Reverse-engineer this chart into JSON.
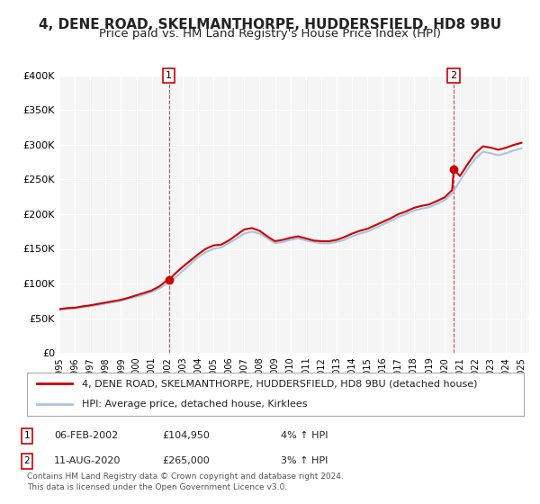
{
  "title": "4, DENE ROAD, SKELMANTHORPE, HUDDERSFIELD, HD8 9BU",
  "subtitle": "Price paid vs. HM Land Registry's House Price Index (HPI)",
  "title_fontsize": 11,
  "subtitle_fontsize": 9.5,
  "ylim": [
    0,
    400000
  ],
  "yticks": [
    0,
    50000,
    100000,
    150000,
    200000,
    250000,
    300000,
    350000,
    400000
  ],
  "ytick_labels": [
    "£0",
    "£50K",
    "£100K",
    "£150K",
    "£200K",
    "£250K",
    "£300K",
    "£350K",
    "£400K"
  ],
  "xlim_start": 1995.0,
  "xlim_end": 2025.5,
  "background_color": "#ffffff",
  "plot_bg_color": "#f5f5f5",
  "grid_color": "#ffffff",
  "hpi_color": "#aac4e0",
  "price_color": "#cc0000",
  "marker_color": "#cc0000",
  "transaction1": {
    "label": "1",
    "year": 2002.1,
    "price": 104950,
    "date": "06-FEB-2002",
    "price_str": "£104,950",
    "hpi_str": "4% ↑ HPI"
  },
  "transaction2": {
    "label": "2",
    "year": 2020.6,
    "price": 265000,
    "date": "11-AUG-2020",
    "price_str": "£265,000",
    "hpi_str": "3% ↑ HPI"
  },
  "legend_line1": "4, DENE ROAD, SKELMANTHORPE, HUDDERSFIELD, HD8 9BU (detached house)",
  "legend_line2": "HPI: Average price, detached house, Kirklees",
  "footnote": "Contains HM Land Registry data © Crown copyright and database right 2024.\nThis data is licensed under the Open Government Licence v3.0.",
  "hpi_data": [
    [
      1995.0,
      62000
    ],
    [
      1995.5,
      63000
    ],
    [
      1996.0,
      64000
    ],
    [
      1996.5,
      65500
    ],
    [
      1997.0,
      67000
    ],
    [
      1997.5,
      69000
    ],
    [
      1998.0,
      71000
    ],
    [
      1998.5,
      73000
    ],
    [
      1999.0,
      75000
    ],
    [
      1999.5,
      78000
    ],
    [
      2000.0,
      81000
    ],
    [
      2000.5,
      84000
    ],
    [
      2001.0,
      88000
    ],
    [
      2001.5,
      93000
    ],
    [
      2002.0,
      100000
    ],
    [
      2002.5,
      108000
    ],
    [
      2003.0,
      118000
    ],
    [
      2003.5,
      128000
    ],
    [
      2004.0,
      138000
    ],
    [
      2004.5,
      145000
    ],
    [
      2005.0,
      150000
    ],
    [
      2005.5,
      152000
    ],
    [
      2006.0,
      158000
    ],
    [
      2006.5,
      165000
    ],
    [
      2007.0,
      172000
    ],
    [
      2007.5,
      175000
    ],
    [
      2008.0,
      172000
    ],
    [
      2008.5,
      165000
    ],
    [
      2009.0,
      158000
    ],
    [
      2009.5,
      160000
    ],
    [
      2010.0,
      163000
    ],
    [
      2010.5,
      165000
    ],
    [
      2011.0,
      162000
    ],
    [
      2011.5,
      160000
    ],
    [
      2012.0,
      158000
    ],
    [
      2012.5,
      158000
    ],
    [
      2013.0,
      160000
    ],
    [
      2013.5,
      163000
    ],
    [
      2014.0,
      168000
    ],
    [
      2014.5,
      172000
    ],
    [
      2015.0,
      175000
    ],
    [
      2015.5,
      180000
    ],
    [
      2016.0,
      185000
    ],
    [
      2016.5,
      190000
    ],
    [
      2017.0,
      196000
    ],
    [
      2017.5,
      200000
    ],
    [
      2018.0,
      205000
    ],
    [
      2018.5,
      208000
    ],
    [
      2019.0,
      210000
    ],
    [
      2019.5,
      215000
    ],
    [
      2020.0,
      220000
    ],
    [
      2020.5,
      230000
    ],
    [
      2021.0,
      248000
    ],
    [
      2021.5,
      265000
    ],
    [
      2022.0,
      280000
    ],
    [
      2022.5,
      290000
    ],
    [
      2023.0,
      288000
    ],
    [
      2023.5,
      285000
    ],
    [
      2024.0,
      288000
    ],
    [
      2024.5,
      292000
    ],
    [
      2025.0,
      295000
    ]
  ],
  "price_data": [
    [
      1995.0,
      63000
    ],
    [
      1995.5,
      64500
    ],
    [
      1996.0,
      65000
    ],
    [
      1996.5,
      67000
    ],
    [
      1997.0,
      68500
    ],
    [
      1997.5,
      70500
    ],
    [
      1998.0,
      72500
    ],
    [
      1998.5,
      74500
    ],
    [
      1999.0,
      76500
    ],
    [
      1999.5,
      79500
    ],
    [
      2000.0,
      83000
    ],
    [
      2000.5,
      86500
    ],
    [
      2001.0,
      90000
    ],
    [
      2001.5,
      96000
    ],
    [
      2002.0,
      104950
    ],
    [
      2002.1,
      104950
    ],
    [
      2002.5,
      114000
    ],
    [
      2003.0,
      124000
    ],
    [
      2003.5,
      133000
    ],
    [
      2004.0,
      142000
    ],
    [
      2004.5,
      150000
    ],
    [
      2005.0,
      155000
    ],
    [
      2005.5,
      156000
    ],
    [
      2006.0,
      162000
    ],
    [
      2006.5,
      170000
    ],
    [
      2007.0,
      178000
    ],
    [
      2007.5,
      180000
    ],
    [
      2008.0,
      176000
    ],
    [
      2008.5,
      168000
    ],
    [
      2009.0,
      161000
    ],
    [
      2009.5,
      163000
    ],
    [
      2010.0,
      166000
    ],
    [
      2010.5,
      168000
    ],
    [
      2011.0,
      165000
    ],
    [
      2011.5,
      162000
    ],
    [
      2012.0,
      161000
    ],
    [
      2012.5,
      161000
    ],
    [
      2013.0,
      163000
    ],
    [
      2013.5,
      167000
    ],
    [
      2014.0,
      172000
    ],
    [
      2014.5,
      176000
    ],
    [
      2015.0,
      179000
    ],
    [
      2015.5,
      184000
    ],
    [
      2016.0,
      189000
    ],
    [
      2016.5,
      194000
    ],
    [
      2017.0,
      200000
    ],
    [
      2017.5,
      204000
    ],
    [
      2018.0,
      209000
    ],
    [
      2018.5,
      212000
    ],
    [
      2019.0,
      214000
    ],
    [
      2019.5,
      219000
    ],
    [
      2020.0,
      224000
    ],
    [
      2020.5,
      235000
    ],
    [
      2020.6,
      265000
    ],
    [
      2021.0,
      255000
    ],
    [
      2021.5,
      272000
    ],
    [
      2022.0,
      288000
    ],
    [
      2022.5,
      298000
    ],
    [
      2023.0,
      296000
    ],
    [
      2023.5,
      293000
    ],
    [
      2024.0,
      296000
    ],
    [
      2024.5,
      300000
    ],
    [
      2025.0,
      303000
    ]
  ]
}
